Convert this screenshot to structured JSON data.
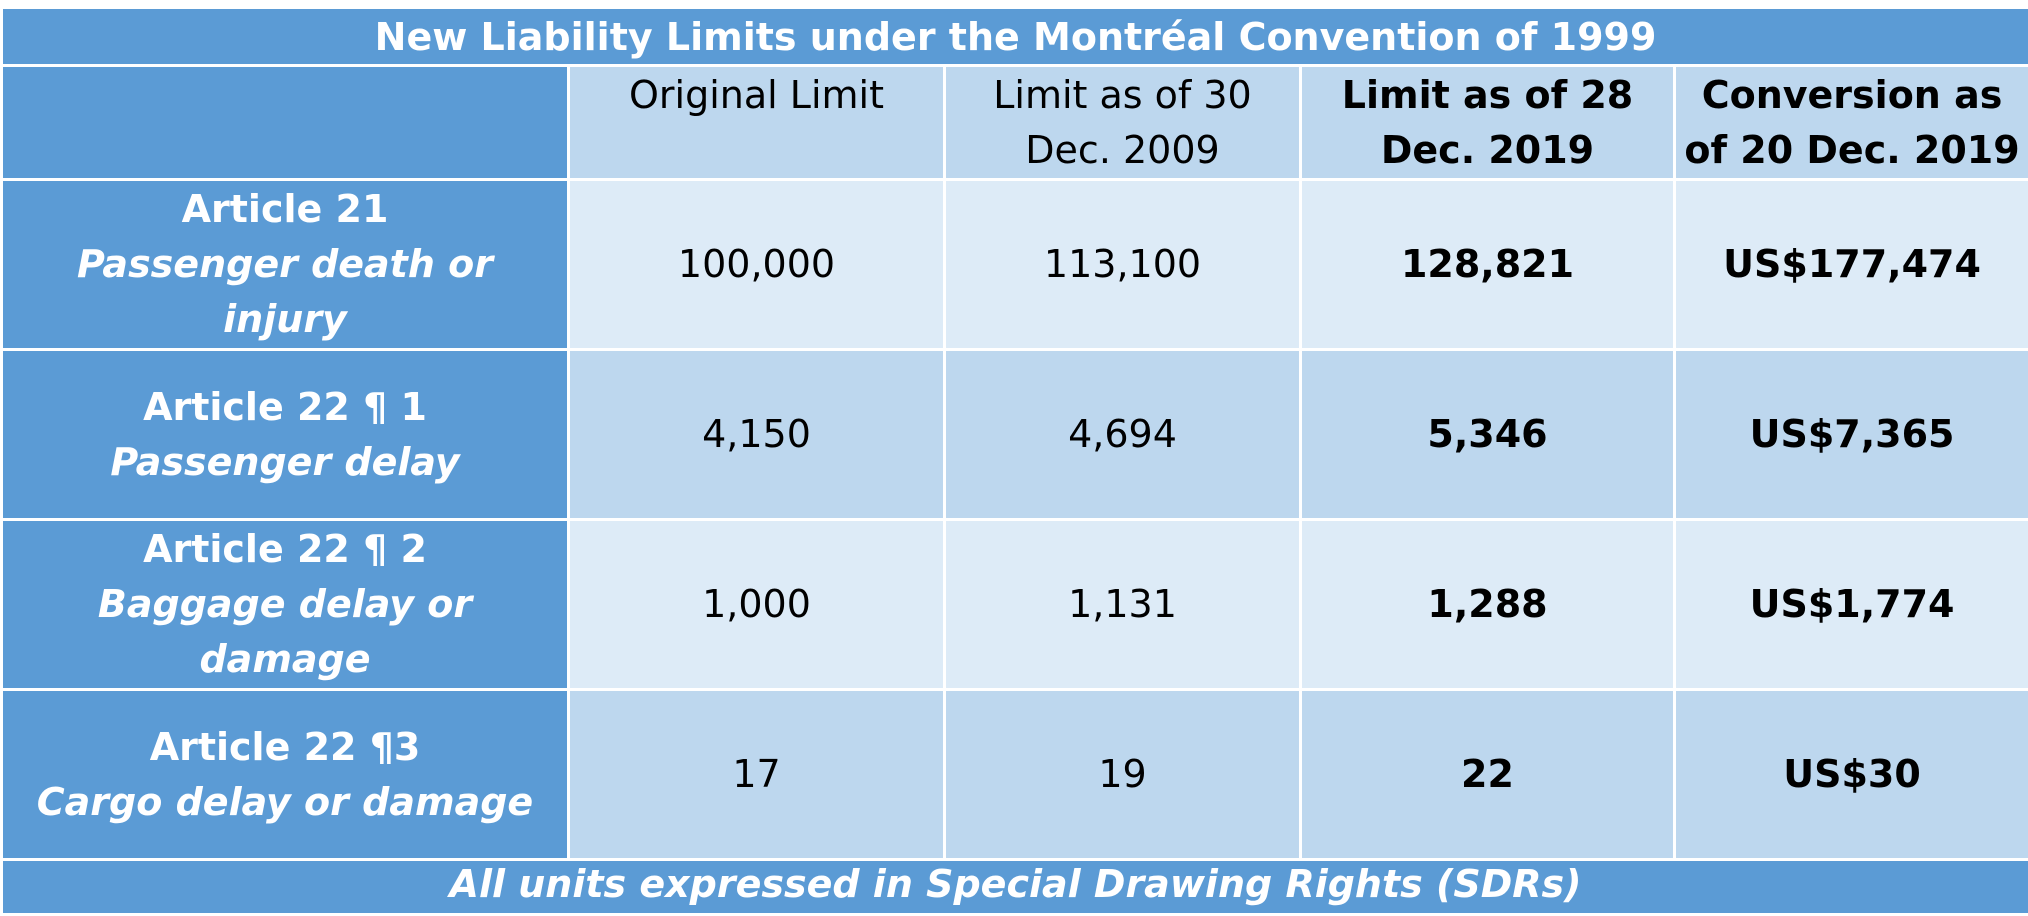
{
  "title": "New Liability Limits under the Montréal Convention of 1999",
  "columns": [
    "",
    "Original Limit",
    "Limit as of 30 Dec. 2009",
    "Limit as of 28 Dec. 2019",
    "Conversion as of 20 Dec. 2019"
  ],
  "header_lines": {
    "original": "Original Limit",
    "limit2009_l1": "Limit as of 30",
    "limit2009_l2": "Dec. 2009",
    "limit2019_l1": "Limit as of 28",
    "limit2019_l2": "Dec. 2019",
    "conversion_l1": "Conversion as",
    "conversion_l2": "of 20 Dec. 2019"
  },
  "rows": [
    {
      "article": "Article 21",
      "description": "Passenger death or injury",
      "original": "100,000",
      "limit_2009": "113,100",
      "limit_2019": "128,821",
      "conversion": "US$177,474"
    },
    {
      "article": "Article 22 ¶ 1",
      "description": "Passenger delay",
      "original": "4,150",
      "limit_2009": "4,694",
      "limit_2019": "5,346",
      "conversion": "US$7,365"
    },
    {
      "article": "Article 22 ¶ 2",
      "description": "Baggage delay or damage",
      "original": "1,000",
      "limit_2009": "1,131",
      "limit_2019": "1,288",
      "conversion": "US$1,774"
    },
    {
      "article": "Article 22 ¶3",
      "description": "Cargo delay or damage",
      "original": "17",
      "limit_2009": "19",
      "limit_2019": "22",
      "conversion": "US$30"
    }
  ],
  "footer": "All units expressed in Special Drawing Rights (SDRs)",
  "colors": {
    "header_blue": "#5b9bd5",
    "light_cell": "#ddebf7",
    "mid_cell": "#bdd7ee",
    "border": "#ffffff"
  }
}
